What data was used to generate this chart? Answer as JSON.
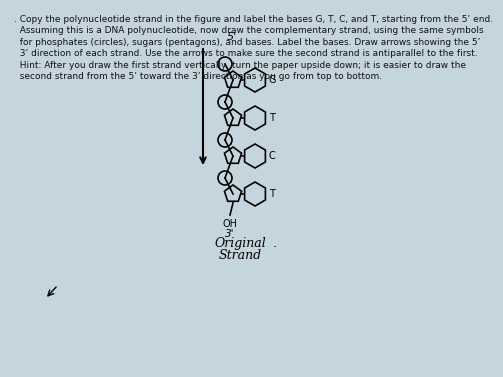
{
  "bg_color": "#c5d5de",
  "text_color": "#111111",
  "text_lines": [
    ". Copy the polynucleotide strand in the figure and label the bases G, T, C, and T, starting from the 5’ end.",
    "  Assuming this is a DNA polynucleotide, now draw the complementary strand, using the same symbols",
    "  for phosphates (circles), sugars (pentagons), and bases. Label the bases. Draw arrows showing the 5’",
    "  3’ direction of each strand. Use the arrows to make sure the second strand is antiparallel to the first.",
    "  Hint: After you draw the first strand vertically, turn the paper upside down; it is easier to draw the",
    "  second strand from the 5’ toward the 3’ direction as you go from top to bottom."
  ],
  "bases": [
    "G",
    "T",
    "C",
    "T"
  ],
  "strand_label_line1": "Original",
  "strand_label_line2": "Strand"
}
